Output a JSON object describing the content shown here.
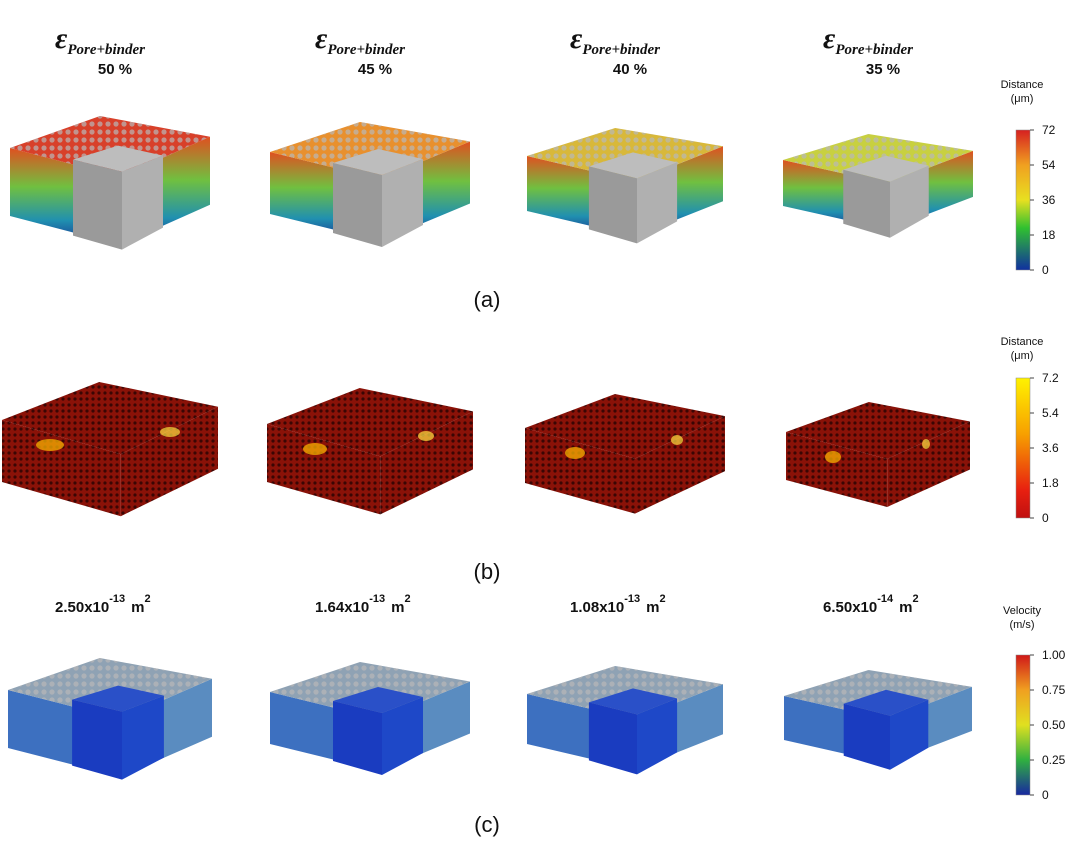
{
  "row_a": {
    "headers": [
      {
        "symbol": "ε",
        "subscript": "Pore+binder",
        "value": "50 %"
      },
      {
        "symbol": "ε",
        "subscript": "Pore+binder",
        "value": "45 %"
      },
      {
        "symbol": "ε",
        "subscript": "Pore+binder",
        "value": "40 %"
      },
      {
        "symbol": "ε",
        "subscript": "Pore+binder",
        "value": "35 %"
      }
    ],
    "colorbar": {
      "title": "Distance",
      "unit": "(μm)",
      "ticks": [
        "72",
        "54",
        "36",
        "18",
        "0"
      ]
    },
    "label": "(a)"
  },
  "row_b": {
    "colorbar": {
      "title": "Distance",
      "unit": "(μm)",
      "ticks": [
        "7.2",
        "5.4",
        "3.6",
        "1.8",
        "0"
      ]
    },
    "label": "(b)"
  },
  "row_c": {
    "headers": [
      {
        "mantissa": "2.50x10",
        "exponent": "-13",
        "unit": "m",
        "unit_exponent": "2"
      },
      {
        "mantissa": "1.64x10",
        "exponent": "-13",
        "unit": "m",
        "unit_exponent": "2"
      },
      {
        "mantissa": "1.08x10",
        "exponent": "-13",
        "unit": "m",
        "unit_exponent": "2"
      },
      {
        "mantissa": "6.50x10",
        "exponent": "-14",
        "unit": "m",
        "unit_exponent": "2"
      }
    ],
    "colorbar": {
      "title": "Velocity",
      "unit": "(m/s)",
      "ticks": [
        "1.00",
        "0.75",
        "0.50",
        "0.25",
        "0"
      ]
    },
    "label": "(c)"
  }
}
